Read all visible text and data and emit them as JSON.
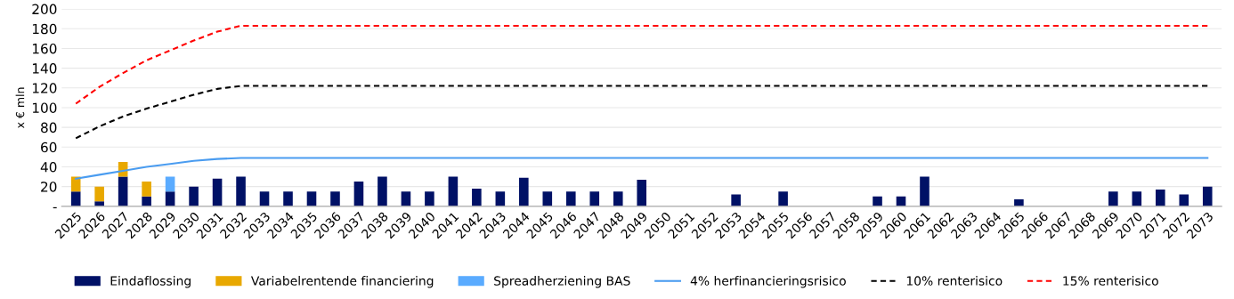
{
  "chart_data": {
    "type": "bar",
    "ylabel": "x € mln",
    "stacked": true,
    "categories": [
      "2025",
      "2026",
      "2027",
      "2028",
      "2029",
      "2030",
      "2031",
      "2032",
      "2033",
      "2034",
      "2035",
      "2036",
      "2037",
      "2038",
      "2039",
      "2040",
      "2041",
      "2042",
      "2043",
      "2044",
      "2045",
      "2046",
      "2047",
      "2048",
      "2049",
      "2050",
      "2051",
      "2052",
      "2053",
      "2054",
      "2055",
      "2056",
      "2057",
      "2058",
      "2059",
      "2060",
      "2061",
      "2062",
      "2063",
      "2064",
      "2065",
      "2066",
      "2067",
      "2068",
      "2069",
      "2070",
      "2071",
      "2072",
      "2073"
    ],
    "series": [
      {
        "name": "Eindaflossing",
        "color": "#001166",
        "values": [
          15,
          5,
          30,
          10,
          15,
          20,
          28,
          30,
          15,
          15,
          15,
          15,
          25,
          30,
          15,
          15,
          30,
          18,
          15,
          29,
          15,
          15,
          15,
          15,
          27,
          null,
          null,
          null,
          12,
          null,
          15,
          null,
          null,
          null,
          10,
          10,
          30,
          null,
          null,
          null,
          7,
          null,
          null,
          null,
          15,
          15,
          17,
          12,
          20
        ]
      },
      {
        "name": "Variabelrentende financiering",
        "color": "#e8a800",
        "values": [
          15,
          15,
          15,
          15,
          null,
          null,
          null,
          null,
          null,
          null,
          null,
          null,
          null,
          null,
          null,
          null,
          null,
          null,
          null,
          null,
          null,
          null,
          null,
          null,
          null,
          null,
          null,
          null,
          null,
          null,
          null,
          null,
          null,
          null,
          null,
          null,
          null,
          null,
          null,
          null,
          null,
          null,
          null,
          null,
          null,
          null,
          null,
          null,
          null
        ]
      },
      {
        "name": "Spreadherziening BAS",
        "color": "#5aabff",
        "values": [
          null,
          null,
          null,
          null,
          15,
          null,
          null,
          null,
          null,
          null,
          null,
          null,
          null,
          null,
          null,
          null,
          null,
          null,
          null,
          null,
          null,
          null,
          null,
          null,
          null,
          null,
          null,
          null,
          null,
          null,
          null,
          null,
          null,
          null,
          null,
          null,
          null,
          null,
          null,
          null,
          null,
          null,
          null,
          null,
          null,
          null,
          null,
          null,
          null
        ]
      },
      {
        "name": "4% herfinancieringsrisico",
        "type": "line",
        "line_style": "solid",
        "color": "#4a9cf0",
        "values": [
          28,
          32,
          36,
          40,
          43,
          46,
          48,
          49,
          49,
          49,
          49,
          49,
          49,
          49,
          49,
          49,
          49,
          49,
          49,
          49,
          49,
          49,
          49,
          49,
          49,
          49,
          49,
          49,
          49,
          49,
          49,
          49,
          49,
          49,
          49,
          49,
          49,
          49,
          49,
          49,
          49,
          49,
          49,
          49,
          49,
          49,
          49,
          49,
          49
        ]
      },
      {
        "name": "10% renterisico",
        "type": "line",
        "line_style": "dashed",
        "color": "#000000",
        "values": [
          69,
          81,
          91,
          99,
          106,
          113,
          119,
          122,
          122,
          122,
          122,
          122,
          122,
          122,
          122,
          122,
          122,
          122,
          122,
          122,
          122,
          122,
          122,
          122,
          122,
          122,
          122,
          122,
          122,
          122,
          122,
          122,
          122,
          122,
          122,
          122,
          122,
          122,
          122,
          122,
          122,
          122,
          122,
          122,
          122,
          122,
          122,
          122,
          122
        ]
      },
      {
        "name": "15% renterisico",
        "type": "line",
        "line_style": "dashed",
        "color": "#ff0000",
        "values": [
          104,
          121,
          135,
          148,
          158,
          168,
          177,
          183,
          183,
          183,
          183,
          183,
          183,
          183,
          183,
          183,
          183,
          183,
          183,
          183,
          183,
          183,
          183,
          183,
          183,
          183,
          183,
          183,
          183,
          183,
          183,
          183,
          183,
          183,
          183,
          183,
          183,
          183,
          183,
          183,
          183,
          183,
          183,
          183,
          183,
          183,
          183,
          183,
          183
        ]
      }
    ],
    "ylim": [
      0,
      200
    ],
    "yticks": [
      {
        "value": 0,
        "label": "-"
      },
      20,
      40,
      60,
      80,
      100,
      120,
      140,
      160,
      180,
      200
    ],
    "grid": "y",
    "legend": "bottom"
  }
}
